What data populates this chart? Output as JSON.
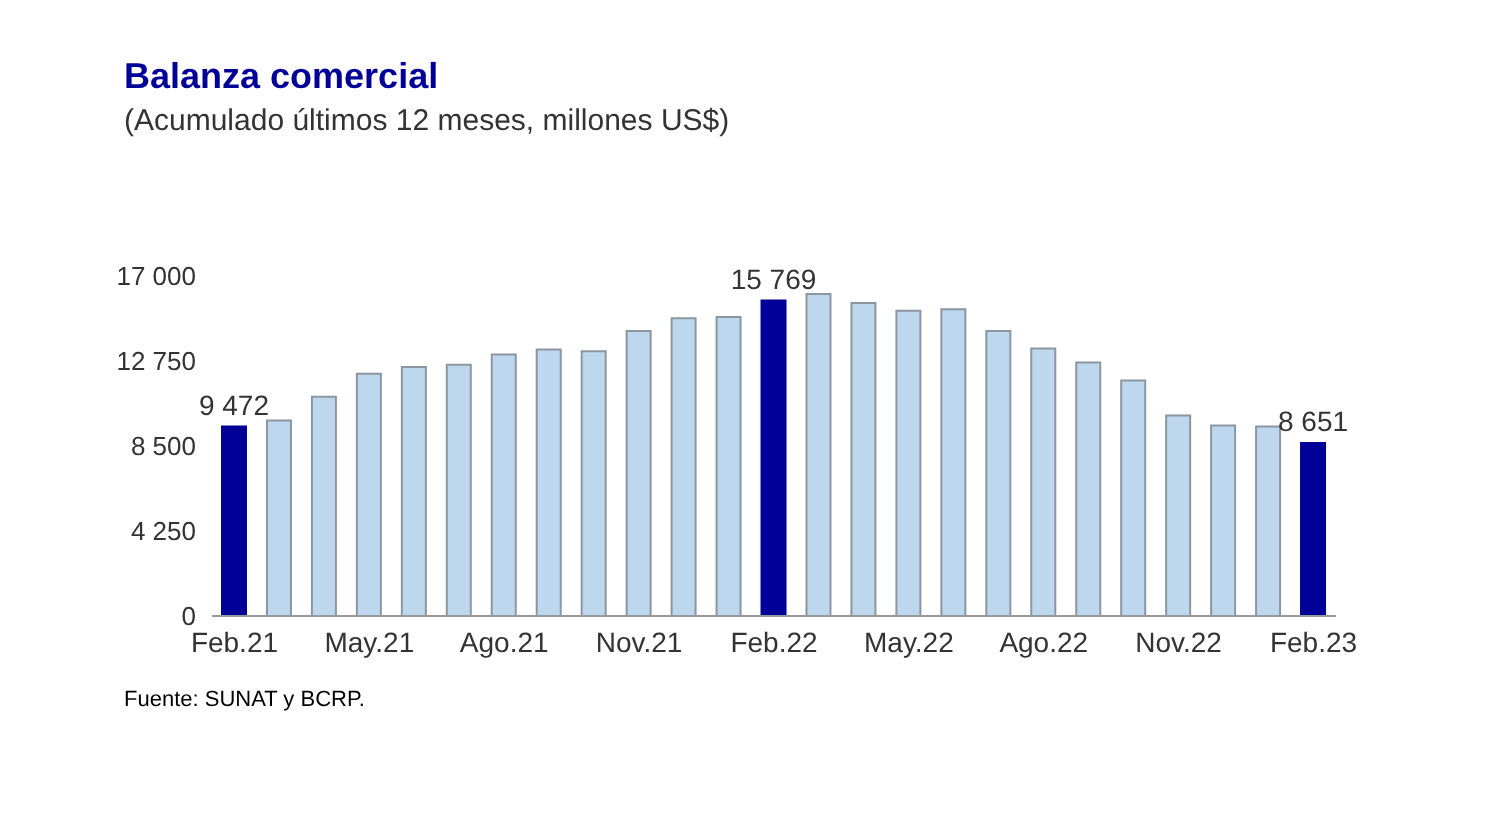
{
  "chart_data": {
    "type": "bar",
    "title": "Balanza comercial",
    "subtitle": "(Acumulado últimos 12 meses, millones US$)",
    "categories": [
      "Feb.21",
      null,
      null,
      "May.21",
      null,
      null,
      "Ago.21",
      null,
      null,
      "Nov.21",
      null,
      null,
      "Feb.22",
      null,
      null,
      "May.22",
      null,
      null,
      "Ago.22",
      null,
      null,
      "Nov.22",
      null,
      null,
      "Feb.23"
    ],
    "values": [
      9472,
      9780,
      10960,
      12110,
      12450,
      12560,
      13070,
      13320,
      13240,
      14250,
      14890,
      14950,
      15769,
      16100,
      15650,
      15260,
      15340,
      14250,
      13380,
      12670,
      11770,
      10030,
      9530,
      9470,
      8651
    ],
    "colors": [
      "#000099",
      "#bdd7ee",
      "#bdd7ee",
      "#bdd7ee",
      "#bdd7ee",
      "#bdd7ee",
      "#bdd7ee",
      "#bdd7ee",
      "#bdd7ee",
      "#bdd7ee",
      "#bdd7ee",
      "#bdd7ee",
      "#000099",
      "#bdd7ee",
      "#bdd7ee",
      "#bdd7ee",
      "#bdd7ee",
      "#bdd7ee",
      "#bdd7ee",
      "#bdd7ee",
      "#bdd7ee",
      "#bdd7ee",
      "#bdd7ee",
      "#bdd7ee",
      "#000099"
    ],
    "value_labels": [
      "9 472",
      null,
      null,
      null,
      null,
      null,
      null,
      null,
      null,
      null,
      null,
      null,
      "15 769",
      null,
      null,
      null,
      null,
      null,
      null,
      null,
      null,
      null,
      null,
      null,
      "8 651"
    ],
    "ylim": [
      0,
      17000
    ],
    "yticks": [
      0,
      {
        "value": 4250,
        "label": "4 250"
      },
      {
        "value": 8500,
        "label": "8 500"
      },
      {
        "value": 12750,
        "label": "12 750"
      },
      {
        "value": 17000,
        "label": "17 000"
      }
    ],
    "grid": false,
    "legend": false,
    "annotations": [
      "Fuente: SUNAT y BCRP."
    ]
  }
}
